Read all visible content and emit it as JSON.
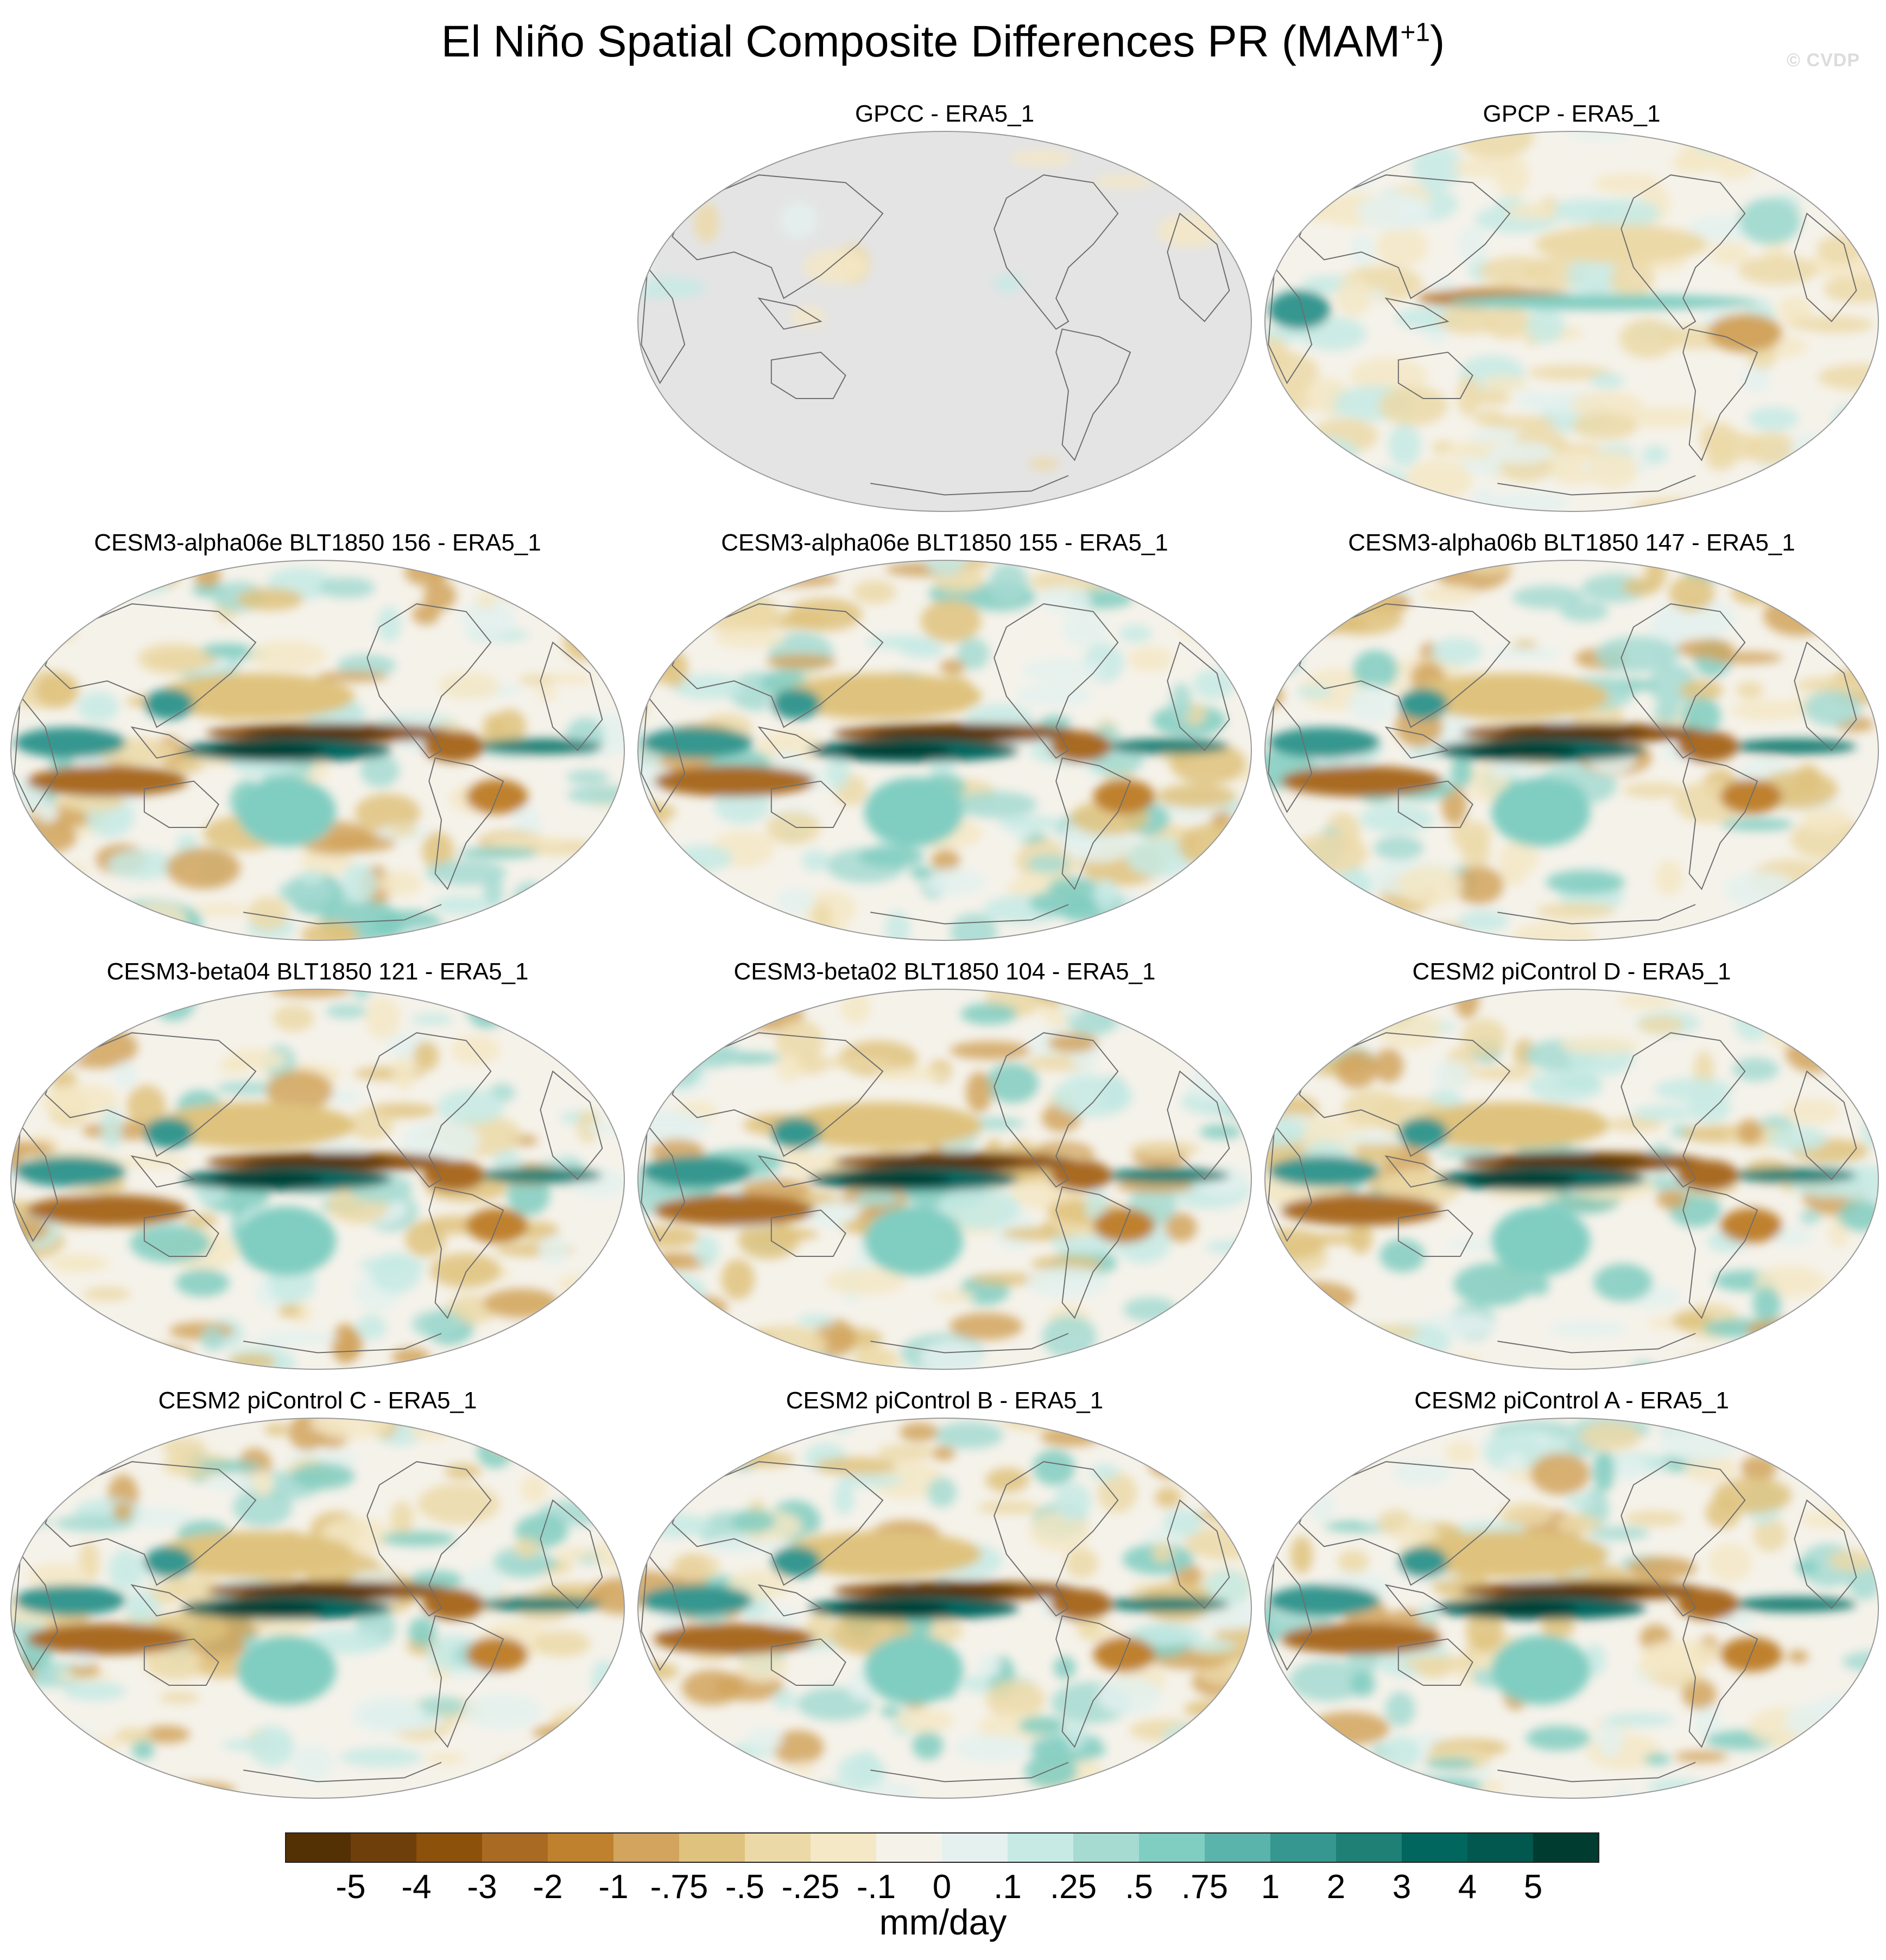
{
  "figure": {
    "title": "El Niño Spatial Composite Differences PR (MAM",
    "title_sup": "+1",
    "title_close": ")",
    "watermark": "© CVDP"
  },
  "chart_data": {
    "type": "heatmap",
    "projection": "Robinson (Pacific-centered global map)",
    "variable": "PR",
    "season": "MAM+1",
    "panels": [
      {
        "title": "GPCC - ERA5_1",
        "pattern": "land_only"
      },
      {
        "title": "GPCP - ERA5_1",
        "pattern": "weak"
      },
      {
        "title": "CESM3-alpha06e BLT1850 156 - ERA5_1",
        "pattern": "strong"
      },
      {
        "title": "CESM3-alpha06e BLT1850 155 - ERA5_1",
        "pattern": "strong"
      },
      {
        "title": "CESM3-alpha06b BLT1850 147 - ERA5_1",
        "pattern": "strong"
      },
      {
        "title": "CESM3-beta04 BLT1850 121 - ERA5_1",
        "pattern": "strong"
      },
      {
        "title": "CESM3-beta02 BLT1850 104 - ERA5_1",
        "pattern": "strong"
      },
      {
        "title": "CESM2 piControl D - ERA5_1",
        "pattern": "strong"
      },
      {
        "title": "CESM2 piControl C - ERA5_1",
        "pattern": "strong"
      },
      {
        "title": "CESM2 piControl B - ERA5_1",
        "pattern": "strong"
      },
      {
        "title": "CESM2 piControl A - ERA5_1",
        "pattern": "strong"
      }
    ],
    "colorbar": {
      "levels": [
        "-5",
        "-4",
        "-3",
        "-2",
        "-1",
        "-.75",
        "-.5",
        "-.25",
        "-.1",
        "0",
        ".1",
        ".25",
        ".5",
        ".75",
        "1",
        "2",
        "3",
        "4",
        "5"
      ],
      "colors": [
        "#543005",
        "#6f3f0b",
        "#8c510a",
        "#a96b23",
        "#bf812d",
        "#d2a45d",
        "#dfc27d",
        "#ecd9a8",
        "#f4e8c6",
        "#f5f2ea",
        "#e4f1ef",
        "#c7eae5",
        "#a6dbd2",
        "#80cdc1",
        "#5ab4ac",
        "#35978f",
        "#1f8075",
        "#01665e",
        "#02574f",
        "#003c30"
      ],
      "units": "mm/day"
    }
  }
}
